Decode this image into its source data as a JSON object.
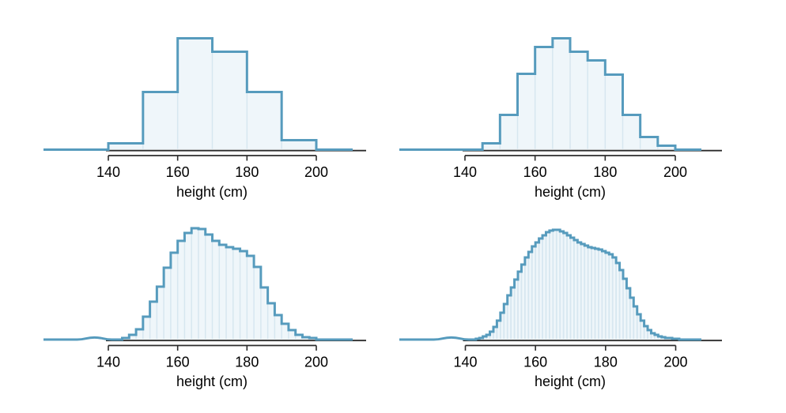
{
  "figure": {
    "background": "#ffffff",
    "accent_color": "#569BBD",
    "fill_color": "#EFF6FA",
    "divider_color": "#D7E7F0",
    "axis_color": "#2B2B2B",
    "text_color": "#000000",
    "description_visible_text_only": "four histograms of height with decreasing bin widths, no titles, no y-axis"
  },
  "chart_data": [
    {
      "type": "bar",
      "subtype": "histogram-outline",
      "grid_position": "top-left",
      "xlabel": "height (cm)",
      "x_tick_values": [
        140,
        160,
        180,
        200
      ],
      "x_tick_labels": [
        "140",
        "160",
        "180",
        "200"
      ],
      "x_axis_range": [
        140,
        200
      ],
      "bin_start": 140,
      "bin_width": 10,
      "y_unit": "relative density (no y-axis drawn; heights estimated from pixels, peak = 141)",
      "values": [
        8,
        73,
        141,
        124,
        73,
        12
      ]
    },
    {
      "type": "bar",
      "subtype": "histogram-outline",
      "grid_position": "top-right",
      "xlabel": "height (cm)",
      "x_tick_values": [
        140,
        160,
        180,
        200
      ],
      "x_tick_labels": [
        "140",
        "160",
        "180",
        "200"
      ],
      "x_axis_range": [
        140,
        200
      ],
      "bin_start": 140,
      "bin_width": 5,
      "y_unit": "relative density (no y-axis drawn; heights estimated from pixels, peak = 141)",
      "values": [
        0,
        8,
        44,
        96,
        130,
        141,
        124,
        113,
        95,
        44,
        16,
        5
      ]
    },
    {
      "type": "bar",
      "subtype": "histogram-outline",
      "grid_position": "bottom-left",
      "xlabel": "height (cm)",
      "x_tick_values": [
        140,
        160,
        180,
        200
      ],
      "x_tick_labels": [
        "140",
        "160",
        "180",
        "200"
      ],
      "x_axis_range": [
        140,
        200
      ],
      "bin_start": 144,
      "bin_width": 2,
      "y_unit": "relative density (no y-axis drawn; heights estimated from pixels, peak = 141)",
      "values": [
        2,
        6,
        13,
        29,
        48,
        67,
        91,
        110,
        125,
        135,
        141,
        140,
        133,
        125,
        120,
        117,
        115,
        112,
        106,
        92,
        66,
        46,
        31,
        20,
        12,
        6,
        3,
        2
      ]
    },
    {
      "type": "bar",
      "subtype": "histogram-outline",
      "grid_position": "bottom-right",
      "xlabel": "height (cm)",
      "x_tick_values": [
        140,
        160,
        180,
        200
      ],
      "x_tick_labels": [
        "140",
        "160",
        "180",
        "200"
      ],
      "x_axis_range": [
        140,
        200
      ],
      "bin_start": 143,
      "bin_width": 1,
      "y_unit": "relative density (no y-axis drawn; heights estimated from pixels, peak = 139)",
      "values": [
        1,
        2,
        4,
        6,
        10,
        16,
        24,
        34,
        45,
        56,
        66,
        76,
        86,
        95,
        104,
        111,
        118,
        123,
        128,
        132,
        136,
        138,
        139,
        139,
        137,
        135,
        132,
        129,
        126,
        123,
        121,
        119,
        117,
        116,
        115,
        114,
        112,
        110,
        108,
        104,
        97,
        88,
        77,
        65,
        53,
        42,
        32,
        24,
        17,
        12,
        8,
        6,
        4,
        3,
        2,
        2,
        1,
        1
      ]
    }
  ]
}
